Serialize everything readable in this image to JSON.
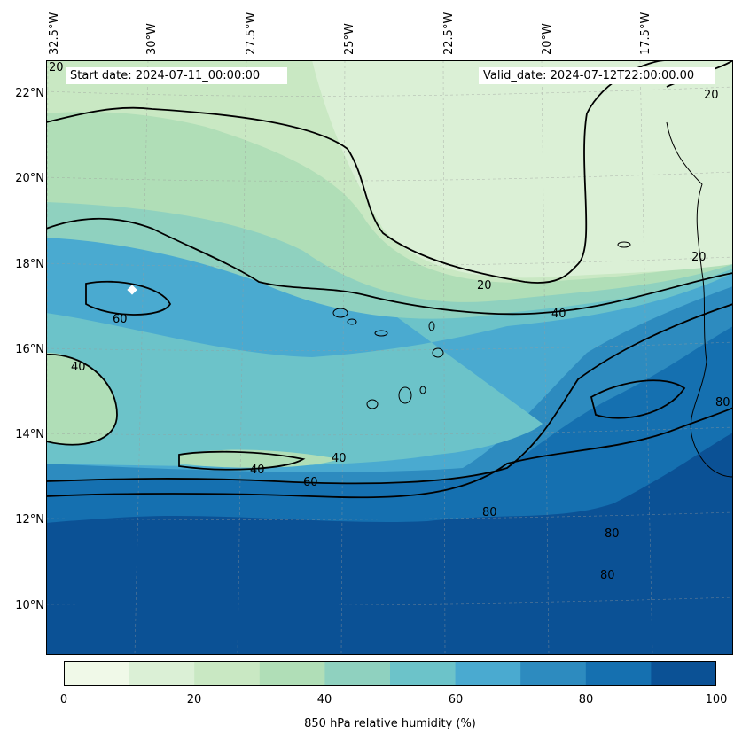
{
  "header": {
    "start_date": "Start date: 2024-07-11_00:00:00",
    "valid_date": "Valid_date: 2024-07-12T22:00:00.00"
  },
  "lon_ticks": [
    "32.5°W",
    "30°W",
    "27.5°W",
    "25°W",
    "22.5°W",
    "20°W",
    "17.5°W"
  ],
  "lat_ticks": [
    "22°N",
    "20°N",
    "18°N",
    "16°N",
    "14°N",
    "12°N",
    "10°N"
  ],
  "contour_labels": [
    "20",
    "20",
    "20",
    "20",
    "40",
    "40",
    "40",
    "40",
    "60",
    "60",
    "80",
    "80",
    "80",
    "80"
  ],
  "colorbar": {
    "label": "850 hPa relative humidity (%)",
    "ticks": [
      "0",
      "20",
      "40",
      "60",
      "80",
      "100"
    ],
    "levels": [
      0,
      10,
      20,
      30,
      40,
      50,
      60,
      70,
      80,
      90,
      100
    ],
    "colors": [
      "#f0f9e8",
      "#dbf0d6",
      "#c9e8c3",
      "#b0deb7",
      "#8fd1bf",
      "#6cc3c9",
      "#4aaad0",
      "#2d8bbf",
      "#1570b0",
      "#0b5195"
    ]
  }
}
